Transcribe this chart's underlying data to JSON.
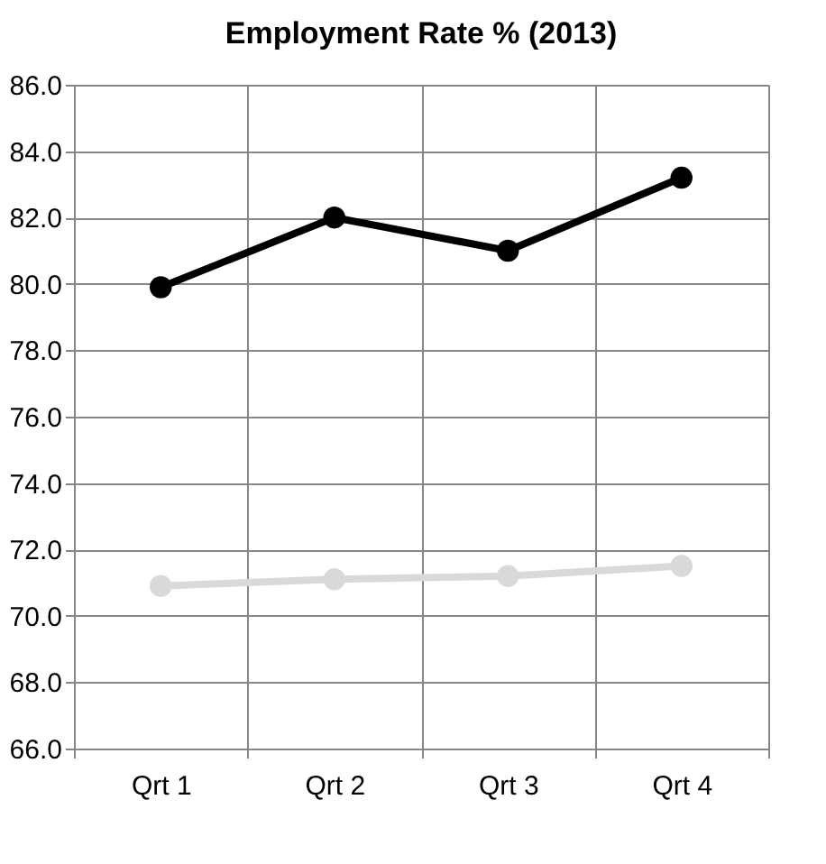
{
  "chart_data": {
    "type": "line",
    "title": "Employment Rate % (2013)",
    "categories": [
      "Qrt 1",
      "Qrt 2",
      "Qrt 3",
      "Qrt 4"
    ],
    "series": [
      {
        "color": "#000000",
        "values": [
          79.9,
          82.0,
          81.0,
          83.2
        ]
      },
      {
        "color": "#d9d9d9",
        "values": [
          70.9,
          71.1,
          71.2,
          71.5
        ]
      }
    ],
    "ylim": [
      66,
      86
    ],
    "yticks": [
      {
        "value": 66,
        "label": "66.0"
      },
      {
        "value": 68,
        "label": "68.0"
      },
      {
        "value": 70,
        "label": "70.0"
      },
      {
        "value": 72,
        "label": "72.0"
      },
      {
        "value": 74,
        "label": "74.0"
      },
      {
        "value": 76,
        "label": "76.0"
      },
      {
        "value": 78,
        "label": "78.0"
      },
      {
        "value": 80,
        "label": "80.0"
      },
      {
        "value": 82,
        "label": "82.0"
      },
      {
        "value": 84,
        "label": "84.0"
      },
      {
        "value": 86,
        "label": "86.0"
      }
    ],
    "grid": true,
    "legend": false,
    "marker": "circle",
    "line_style": "solid"
  }
}
